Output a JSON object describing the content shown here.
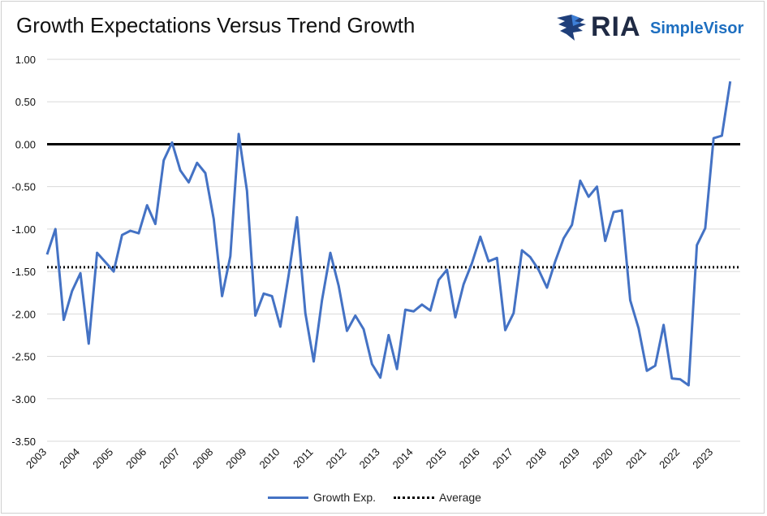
{
  "header": {
    "title": "Growth Expectations Versus Trend Growth",
    "logo_primary": "RIA",
    "logo_secondary": "SimpleVisor"
  },
  "colors": {
    "series": "#4472c4",
    "zero_line": "#000000",
    "average": "#000000",
    "grid": "#d9d9d9"
  },
  "chart_data": {
    "type": "line",
    "title": "Growth Expectations Versus Trend Growth",
    "xlabel": "",
    "ylabel": "",
    "ylim": [
      -3.5,
      1.0
    ],
    "yticks": [
      1.0,
      0.5,
      0.0,
      -0.5,
      -1.0,
      -1.5,
      -2.0,
      -2.5,
      -3.0,
      -3.5
    ],
    "ytick_labels": [
      "1.00",
      "0.50",
      "0.00",
      "-0.50",
      "-1.00",
      "-1.50",
      "-2.00",
      "-2.50",
      "-3.00",
      "-3.50"
    ],
    "xlim": [
      2003,
      2023.8
    ],
    "xticks": [
      2003,
      2004,
      2005,
      2006,
      2007,
      2008,
      2009,
      2010,
      2011,
      2012,
      2013,
      2014,
      2015,
      2016,
      2017,
      2018,
      2019,
      2020,
      2021,
      2022,
      2023
    ],
    "xtick_labels": [
      "2003",
      "2004",
      "2005",
      "2006",
      "2007",
      "2008",
      "2009",
      "2010",
      "2011",
      "2012",
      "2013",
      "2014",
      "2015",
      "2016",
      "2017",
      "2018",
      "2019",
      "2020",
      "2021",
      "2022",
      "2023"
    ],
    "legend_position": "bottom-center",
    "series": [
      {
        "name": "Growth Exp.",
        "style": "solid",
        "x": [
          2003.0,
          2003.25,
          2003.5,
          2003.75,
          2004.0,
          2004.25,
          2004.5,
          2004.75,
          2005.0,
          2005.25,
          2005.5,
          2005.75,
          2006.0,
          2006.25,
          2006.5,
          2006.75,
          2007.0,
          2007.25,
          2007.5,
          2007.75,
          2008.0,
          2008.25,
          2008.5,
          2008.75,
          2009.0,
          2009.25,
          2009.5,
          2009.75,
          2010.0,
          2010.25,
          2010.5,
          2010.75,
          2011.0,
          2011.25,
          2011.5,
          2011.75,
          2012.0,
          2012.25,
          2012.5,
          2012.75,
          2013.0,
          2013.25,
          2013.5,
          2013.75,
          2014.0,
          2014.25,
          2014.5,
          2014.75,
          2015.0,
          2015.25,
          2015.5,
          2015.75,
          2016.0,
          2016.25,
          2016.5,
          2016.75,
          2017.0,
          2017.25,
          2017.5,
          2017.75,
          2018.0,
          2018.25,
          2018.5,
          2018.75,
          2019.0,
          2019.25,
          2019.5,
          2019.75,
          2020.0,
          2020.25,
          2020.5,
          2020.75,
          2021.0,
          2021.25,
          2021.5,
          2021.75,
          2022.0,
          2022.25,
          2022.5,
          2022.75,
          2023.0,
          2023.25,
          2023.5
        ],
        "values": [
          -1.3,
          -1.0,
          -2.07,
          -1.73,
          -1.52,
          -2.35,
          -1.28,
          -1.39,
          -1.5,
          -1.07,
          -1.02,
          -1.05,
          -0.72,
          -0.94,
          -0.19,
          0.02,
          -0.31,
          -0.45,
          -0.22,
          -0.34,
          -0.88,
          -1.79,
          -1.32,
          0.12,
          -0.55,
          -2.02,
          -1.76,
          -1.79,
          -2.15,
          -1.54,
          -0.86,
          -1.99,
          -2.56,
          -1.84,
          -1.28,
          -1.67,
          -2.2,
          -2.02,
          -2.18,
          -2.59,
          -2.75,
          -2.25,
          -2.65,
          -1.95,
          -1.97,
          -1.89,
          -1.96,
          -1.6,
          -1.48,
          -2.04,
          -1.65,
          -1.4,
          -1.09,
          -1.38,
          -1.34,
          -2.19,
          -1.99,
          -1.25,
          -1.33,
          -1.48,
          -1.69,
          -1.38,
          -1.11,
          -0.95,
          -0.43,
          -0.62,
          -0.5,
          -1.14,
          -0.8,
          -0.78,
          -1.84,
          -2.17,
          -2.67,
          -2.61,
          -2.13,
          -2.76,
          -2.77,
          -2.84,
          -1.19,
          -0.99,
          0.07,
          0.1,
          0.74
        ]
      },
      {
        "name": "Average",
        "style": "dotted",
        "x": [
          2003.0,
          2023.8
        ],
        "values": [
          -1.45,
          -1.45
        ]
      }
    ]
  }
}
